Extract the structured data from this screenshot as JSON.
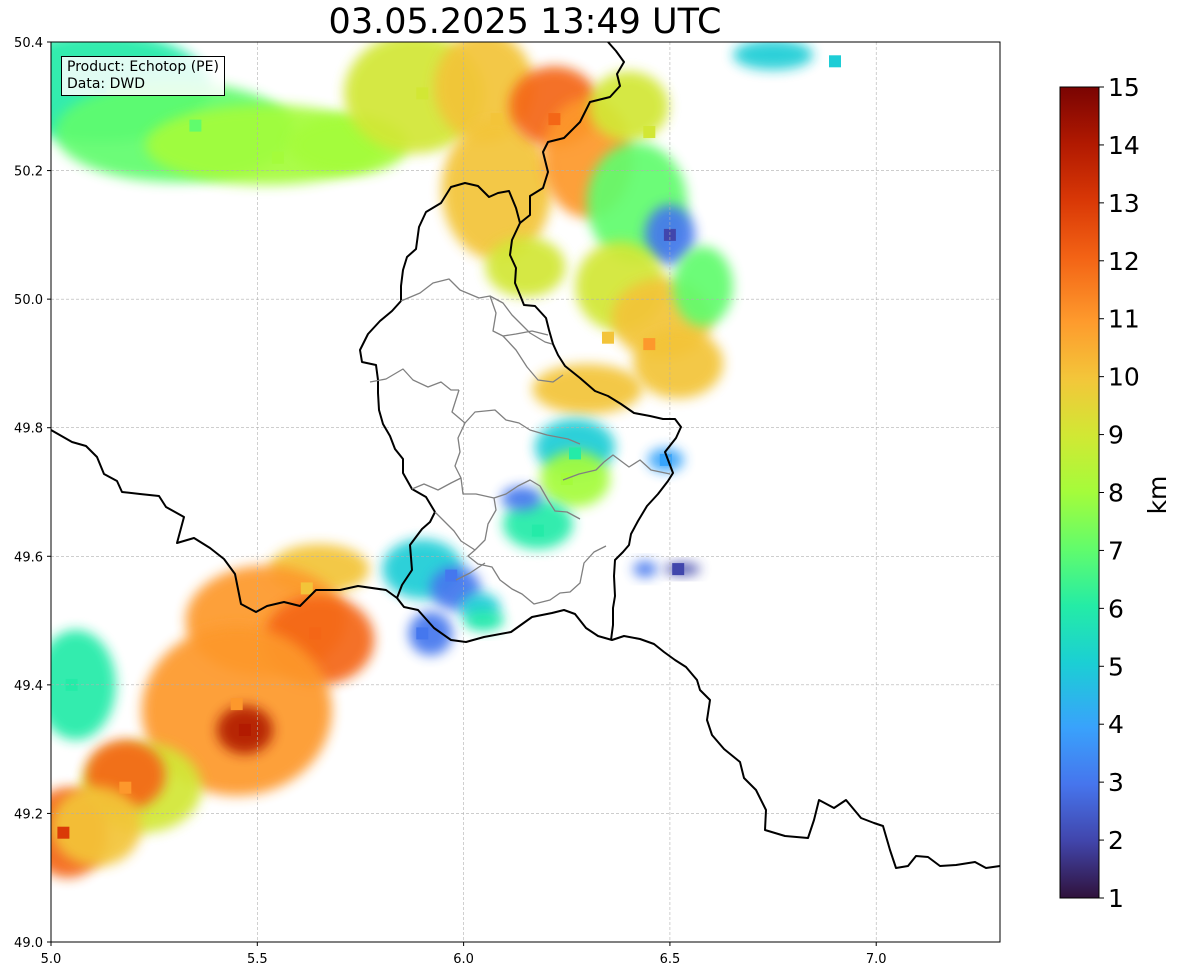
{
  "title": "03.05.2025 13:49 UTC",
  "info": {
    "product": "Product: Echotop (PE)",
    "data": "Data: DWD"
  },
  "chart_data": {
    "type": "heatmap",
    "title": "03.05.2025 13:49 UTC",
    "xlim": [
      5.0,
      7.3
    ],
    "ylim": [
      49.0,
      50.4
    ],
    "x_ticks": [
      "5.0",
      "5.5",
      "6.0",
      "6.5",
      "7.0"
    ],
    "y_ticks": [
      "49.0",
      "49.2",
      "49.4",
      "49.6",
      "49.8",
      "50.0",
      "50.2",
      "50.4"
    ],
    "grid": true,
    "colorbar": {
      "label": "km",
      "min": 1,
      "max": 15,
      "ticks": [
        "1",
        "2",
        "3",
        "4",
        "5",
        "6",
        "7",
        "8",
        "9",
        "10",
        "11",
        "12",
        "13",
        "14",
        "15"
      ],
      "colormap": "turbo"
    },
    "cells": [
      {
        "lon": 5.12,
        "lat": 50.33,
        "value": 6
      },
      {
        "lon": 5.35,
        "lat": 50.27,
        "value": 7
      },
      {
        "lon": 5.55,
        "lat": 50.22,
        "value": 8
      },
      {
        "lon": 5.9,
        "lat": 50.32,
        "value": 9
      },
      {
        "lon": 6.08,
        "lat": 50.28,
        "value": 10
      },
      {
        "lon": 6.22,
        "lat": 50.28,
        "value": 12
      },
      {
        "lon": 6.45,
        "lat": 50.26,
        "value": 9
      },
      {
        "lon": 6.5,
        "lat": 50.1,
        "value": 2
      },
      {
        "lon": 6.35,
        "lat": 49.94,
        "value": 10
      },
      {
        "lon": 6.45,
        "lat": 49.93,
        "value": 11
      },
      {
        "lon": 6.9,
        "lat": 50.37,
        "value": 5
      },
      {
        "lon": 6.27,
        "lat": 49.76,
        "value": 6
      },
      {
        "lon": 6.25,
        "lat": 49.72,
        "value": 8
      },
      {
        "lon": 6.18,
        "lat": 49.64,
        "value": 6
      },
      {
        "lon": 5.47,
        "lat": 49.33,
        "value": 14
      },
      {
        "lon": 5.45,
        "lat": 49.37,
        "value": 11
      },
      {
        "lon": 5.64,
        "lat": 49.48,
        "value": 12
      },
      {
        "lon": 5.62,
        "lat": 49.55,
        "value": 10
      },
      {
        "lon": 5.18,
        "lat": 49.24,
        "value": 11
      },
      {
        "lon": 5.03,
        "lat": 49.17,
        "value": 13
      },
      {
        "lon": 5.05,
        "lat": 49.4,
        "value": 6
      },
      {
        "lon": 5.9,
        "lat": 49.48,
        "value": 3
      },
      {
        "lon": 5.97,
        "lat": 49.57,
        "value": 3
      },
      {
        "lon": 6.52,
        "lat": 49.58,
        "value": 2
      },
      {
        "lon": 6.49,
        "lat": 49.75,
        "value": 4
      }
    ]
  }
}
